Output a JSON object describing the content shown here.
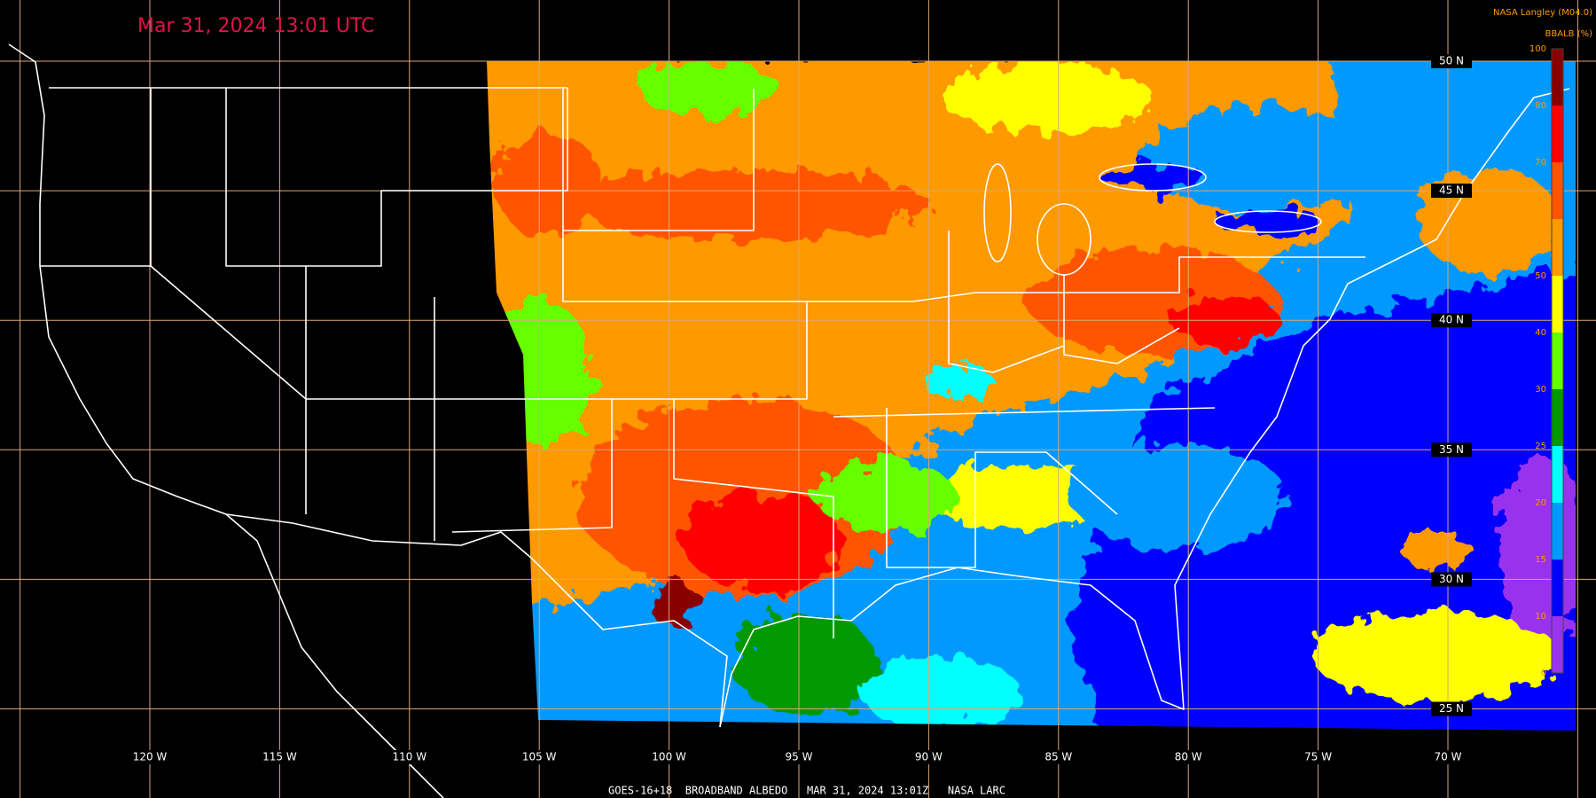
{
  "title": "Mar 31, 2024 13:01 UTC",
  "source": "NASA Langley (M04.0)",
  "colorbar": {
    "title": "BBALB (%)",
    "ticks": [
      0,
      10,
      15,
      20,
      25,
      30,
      40,
      50,
      60,
      70,
      80,
      100
    ],
    "colors": [
      "#9933ee",
      "#0000ff",
      "#0099ff",
      "#00ffff",
      "#009900",
      "#66ff00",
      "#ffff00",
      "#ff9900",
      "#ff5500",
      "#ff0000",
      "#880000"
    ]
  },
  "lat_labels": [
    "50 N",
    "45 N",
    "40 N",
    "35 N",
    "30 N",
    "25 N"
  ],
  "lon_labels": [
    "120 W",
    "115 W",
    "110 W",
    "105 W",
    "100 W",
    "95 W",
    "90 W",
    "85 W",
    "80 W",
    "75 W",
    "70 W"
  ],
  "footer": "GOES-16+18  BROADBAND ALBEDO   MAR 31, 2024 13:01Z   NASA LARC"
}
